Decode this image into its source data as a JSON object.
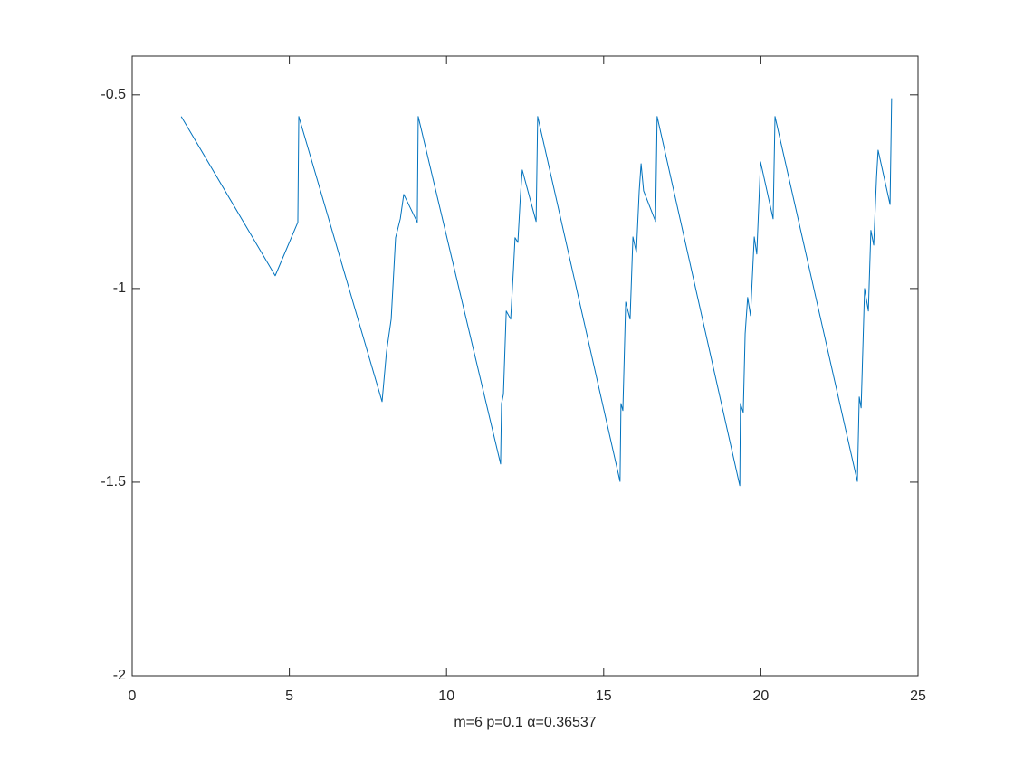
{
  "chart_data": {
    "type": "line",
    "xlabel": "m=6 p=0.1 α=0.36537",
    "xlim": [
      0,
      25
    ],
    "xticks": [
      0,
      5,
      10,
      15,
      20,
      25
    ],
    "ylim": [
      -2,
      -0.4
    ],
    "yticks": [
      -2,
      -1.5,
      -1,
      -0.5
    ],
    "grid": false,
    "series": [
      {
        "color": "#0072bd",
        "x": [
          1.56,
          4.55,
          5.27,
          5.3,
          7.95,
          8.09,
          8.24,
          8.38,
          8.53,
          8.64,
          9.07,
          9.1,
          11.72,
          11.75,
          11.81,
          11.9,
          12.04,
          12.13,
          12.18,
          12.27,
          12.35,
          12.41,
          12.85,
          12.9,
          15.52,
          15.55,
          15.61,
          15.7,
          15.84,
          15.93,
          16.04,
          16.13,
          16.19,
          16.27,
          16.65,
          16.7,
          19.33,
          19.35,
          19.44,
          19.5,
          19.58,
          19.67,
          19.79,
          19.87,
          19.99,
          20.39,
          20.45,
          23.07,
          23.13,
          23.19,
          23.3,
          23.42,
          23.5,
          23.59,
          23.68,
          23.73,
          24.11,
          24.16
        ],
        "values": [
          -0.556,
          -0.967,
          -0.829,
          -0.556,
          -1.292,
          -1.164,
          -1.079,
          -0.869,
          -0.82,
          -0.757,
          -0.829,
          -0.556,
          -1.453,
          -1.297,
          -1.273,
          -1.058,
          -1.079,
          -0.949,
          -0.869,
          -0.881,
          -0.762,
          -0.694,
          -0.827,
          -0.556,
          -1.498,
          -1.297,
          -1.315,
          -1.035,
          -1.079,
          -0.867,
          -0.907,
          -0.748,
          -0.678,
          -0.748,
          -0.827,
          -0.556,
          -1.509,
          -1.297,
          -1.32,
          -1.117,
          -1.023,
          -1.07,
          -0.867,
          -0.911,
          -0.673,
          -0.82,
          -0.556,
          -1.498,
          -1.28,
          -1.308,
          -1.0,
          -1.058,
          -0.85,
          -0.888,
          -0.713,
          -0.643,
          -0.783,
          -0.509
        ]
      }
    ]
  }
}
